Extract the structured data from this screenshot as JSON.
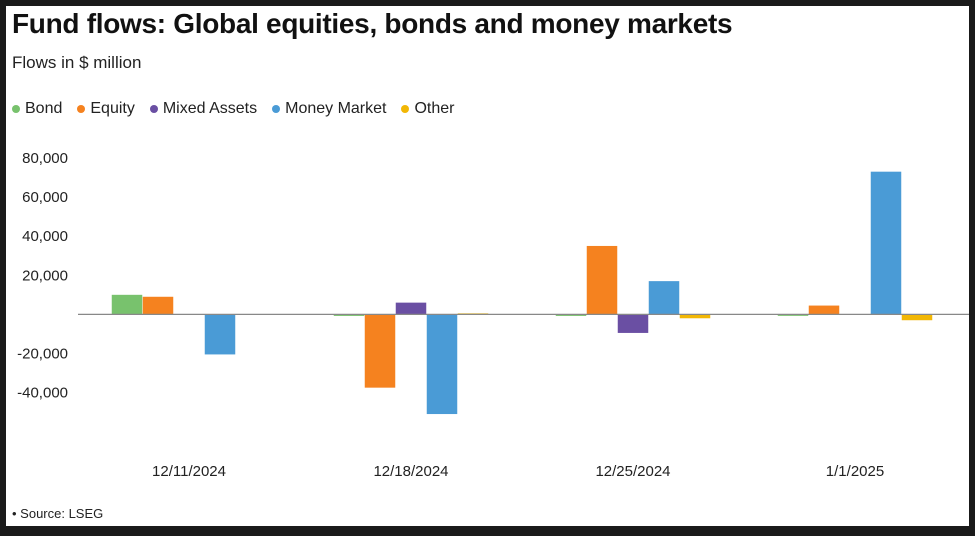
{
  "title": "Fund flows: Global equities, bonds and money markets",
  "subtitle": "Flows in $ million",
  "source": "• Source: LSEG",
  "legend": [
    {
      "name": "Bond",
      "color": "#78c26d"
    },
    {
      "name": "Equity",
      "color": "#f5821f"
    },
    {
      "name": "Mixed Assets",
      "color": "#6a4fa3"
    },
    {
      "name": "Money Market",
      "color": "#4a9bd6"
    },
    {
      "name": "Other",
      "color": "#f2b705"
    }
  ],
  "chart_data": {
    "type": "bar",
    "title": "Fund flows: Global equities, bonds and money markets",
    "subtitle": "Flows in $ million",
    "categories": [
      "12/11/2024",
      "12/18/2024",
      "12/25/2024",
      "1/1/2025"
    ],
    "series": [
      {
        "name": "Bond",
        "color": "#78c26d",
        "values": [
          10000,
          -800,
          -800,
          -200
        ]
      },
      {
        "name": "Equity",
        "color": "#f5821f",
        "values": [
          9000,
          -37500,
          35000,
          4500
        ]
      },
      {
        "name": "Mixed Assets",
        "color": "#6a4fa3",
        "values": [
          0,
          6000,
          -9500,
          0
        ]
      },
      {
        "name": "Money Market",
        "color": "#4a9bd6",
        "values": [
          -20500,
          -51000,
          17000,
          73000
        ]
      },
      {
        "name": "Other",
        "color": "#f2b705",
        "values": [
          0,
          500,
          -2000,
          -3000
        ]
      }
    ],
    "yticks": [
      80000,
      60000,
      40000,
      20000,
      -20000,
      -40000
    ],
    "ytick_labels": [
      "80,000",
      "60,000",
      "40,000",
      "20,000",
      "-20,000",
      "-40,000"
    ],
    "ylim": [
      -52000,
      80000
    ],
    "grid": false,
    "legend_position": "top-left"
  }
}
